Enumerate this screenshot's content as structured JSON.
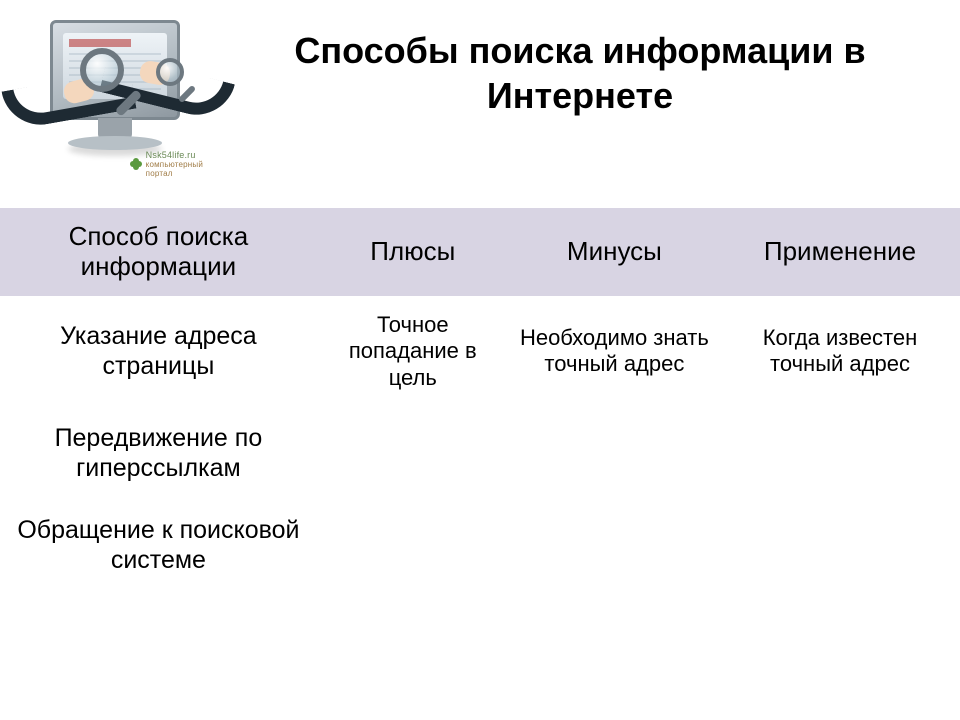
{
  "title": "Способы поиска информации в Интернете",
  "illustration": {
    "watermark_top": "Nsk54life.ru",
    "watermark_bottom": "компьютерный портал"
  },
  "table": {
    "header_bg": "#d8d4e3",
    "header_fontsize": 26,
    "cell_fontsize": 22,
    "method_fontsize": 25,
    "columns": [
      {
        "key": "method",
        "label": "Способ поиска информации",
        "width_pct": 33
      },
      {
        "key": "plus",
        "label": "Плюсы",
        "width_pct": 20
      },
      {
        "key": "minus",
        "label": "Минусы",
        "width_pct": 22
      },
      {
        "key": "use",
        "label": "Применение",
        "width_pct": 25
      }
    ],
    "rows": [
      {
        "method": "Указание адреса страницы",
        "plus": "Точное попадание в цель",
        "minus": "Необходимо знать точный адрес",
        "use": "Когда известен точный адрес"
      },
      {
        "method": "Передвижение по гиперссылкам",
        "plus": "",
        "minus": "",
        "use": ""
      },
      {
        "method": "Обращение к поисковой системе",
        "plus": "",
        "minus": "",
        "use": ""
      }
    ]
  }
}
